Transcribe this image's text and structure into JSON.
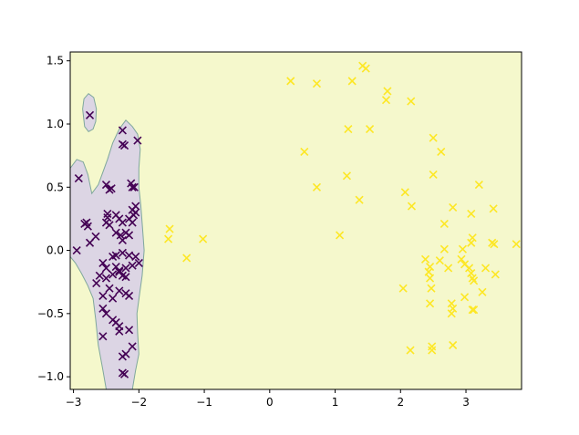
{
  "chart_data": {
    "type": "scatter",
    "title": "",
    "xlabel": "",
    "ylabel": "",
    "xlim": [
      -3.05,
      3.85
    ],
    "ylim": [
      -1.1,
      1.57
    ],
    "xticks": [
      -3,
      -2,
      -1,
      0,
      1,
      2,
      3
    ],
    "yticks": [
      -1.0,
      -0.5,
      0.0,
      0.5,
      1.0,
      1.5
    ],
    "ytick_labels": [
      "−1.0",
      "−0.5",
      "0.0",
      "0.5",
      "1.0",
      "1.5"
    ],
    "xtick_labels": [
      "−3",
      "−2",
      "−1",
      "0",
      "1",
      "2",
      "3"
    ],
    "marker": "x",
    "grid": false,
    "legend": false,
    "colors": {
      "class_0_marker": "#440154",
      "class_1_marker": "#fde725",
      "region_class_0_fill": "#dcd5e4",
      "region_class_0_edge": "#7fa79c",
      "region_class_1_fill": "#f5f8cc"
    },
    "regions": [
      {
        "label": "class 0 decision region (main)",
        "points": [
          [
            -3.05,
            0.65
          ],
          [
            -2.95,
            0.72
          ],
          [
            -2.85,
            0.7
          ],
          [
            -2.78,
            0.6
          ],
          [
            -2.72,
            0.45
          ],
          [
            -2.62,
            0.52
          ],
          [
            -2.55,
            0.62
          ],
          [
            -2.48,
            0.72
          ],
          [
            -2.4,
            0.85
          ],
          [
            -2.3,
            0.96
          ],
          [
            -2.2,
            1.03
          ],
          [
            -2.1,
            0.98
          ],
          [
            -2.02,
            0.92
          ],
          [
            -1.98,
            0.8
          ],
          [
            -2.0,
            0.65
          ],
          [
            -2.0,
            0.5
          ],
          [
            -1.97,
            0.35
          ],
          [
            -1.94,
            0.15
          ],
          [
            -1.92,
            0.0
          ],
          [
            -1.95,
            -0.2
          ],
          [
            -1.99,
            -0.35
          ],
          [
            -2.03,
            -0.5
          ],
          [
            -2.02,
            -0.65
          ],
          [
            -2.0,
            -0.82
          ],
          [
            -2.05,
            -0.95
          ],
          [
            -2.1,
            -1.1
          ],
          [
            -2.5,
            -1.1
          ],
          [
            -2.55,
            -0.95
          ],
          [
            -2.62,
            -0.75
          ],
          [
            -2.66,
            -0.55
          ],
          [
            -2.7,
            -0.38
          ],
          [
            -2.78,
            -0.28
          ],
          [
            -2.88,
            -0.18
          ],
          [
            -2.97,
            -0.1
          ],
          [
            -3.05,
            -0.05
          ]
        ]
      },
      {
        "label": "class 0 decision region (island)",
        "points": [
          [
            -2.86,
            1.12
          ],
          [
            -2.84,
            1.2
          ],
          [
            -2.77,
            1.24
          ],
          [
            -2.69,
            1.21
          ],
          [
            -2.65,
            1.12
          ],
          [
            -2.66,
            1.02
          ],
          [
            -2.7,
            0.96
          ],
          [
            -2.77,
            0.94
          ],
          [
            -2.83,
            0.98
          ]
        ]
      }
    ],
    "series": [
      {
        "class": 0,
        "points": [
          [
            -2.75,
            1.07
          ],
          [
            -2.25,
            0.95
          ],
          [
            -2.25,
            0.84
          ],
          [
            -2.22,
            0.83
          ],
          [
            -2.02,
            0.87
          ],
          [
            -2.92,
            0.57
          ],
          [
            -2.5,
            0.52
          ],
          [
            -2.45,
            0.48
          ],
          [
            -2.42,
            0.49
          ],
          [
            -2.12,
            0.53
          ],
          [
            -2.1,
            0.5
          ],
          [
            -2.07,
            0.5
          ],
          [
            -2.05,
            0.35
          ],
          [
            -2.1,
            0.32
          ],
          [
            -2.05,
            0.3
          ],
          [
            -2.08,
            0.28
          ],
          [
            -2.8,
            0.22
          ],
          [
            -2.78,
            0.19
          ],
          [
            -2.83,
            0.21
          ],
          [
            -2.48,
            0.29
          ],
          [
            -2.48,
            0.26
          ],
          [
            -2.35,
            0.28
          ],
          [
            -2.3,
            0.25
          ],
          [
            -2.25,
            0.22
          ],
          [
            -2.5,
            0.22
          ],
          [
            -2.45,
            0.2
          ],
          [
            -2.15,
            0.25
          ],
          [
            -2.1,
            0.22
          ],
          [
            -2.66,
            0.11
          ],
          [
            -2.28,
            0.12
          ],
          [
            -2.25,
            0.08
          ],
          [
            -2.15,
            0.12
          ],
          [
            -2.2,
            0.14
          ],
          [
            -2.35,
            0.14
          ],
          [
            -2.95,
            0.0
          ],
          [
            -2.75,
            0.06
          ],
          [
            -2.4,
            -0.05
          ],
          [
            -2.35,
            -0.04
          ],
          [
            -2.25,
            -0.02
          ],
          [
            -2.15,
            -0.04
          ],
          [
            -2.05,
            -0.05
          ],
          [
            -2.55,
            -0.1
          ],
          [
            -2.5,
            -0.14
          ],
          [
            -2.35,
            -0.13
          ],
          [
            -2.3,
            -0.16
          ],
          [
            -2.2,
            -0.14
          ],
          [
            -2.1,
            -0.12
          ],
          [
            -2.0,
            -0.1
          ],
          [
            -2.6,
            -0.2
          ],
          [
            -2.5,
            -0.22
          ],
          [
            -2.4,
            -0.19
          ],
          [
            -2.3,
            -0.17
          ],
          [
            -2.25,
            -0.2
          ],
          [
            -2.2,
            -0.21
          ],
          [
            -2.65,
            -0.26
          ],
          [
            -2.45,
            -0.3
          ],
          [
            -2.3,
            -0.32
          ],
          [
            -2.2,
            -0.34
          ],
          [
            -2.15,
            -0.36
          ],
          [
            -2.55,
            -0.36
          ],
          [
            -2.4,
            -0.38
          ],
          [
            -2.55,
            -0.46
          ],
          [
            -2.5,
            -0.5
          ],
          [
            -2.4,
            -0.55
          ],
          [
            -2.35,
            -0.57
          ],
          [
            -2.3,
            -0.6
          ],
          [
            -2.3,
            -0.64
          ],
          [
            -2.55,
            -0.68
          ],
          [
            -2.15,
            -0.63
          ],
          [
            -2.1,
            -0.76
          ],
          [
            -2.2,
            -0.82
          ],
          [
            -2.25,
            -0.84
          ],
          [
            -2.25,
            -0.97
          ],
          [
            -2.22,
            -0.98
          ]
        ]
      },
      {
        "class": 1,
        "points": [
          [
            1.42,
            1.46
          ],
          [
            1.47,
            1.44
          ],
          [
            0.32,
            1.34
          ],
          [
            0.72,
            1.32
          ],
          [
            1.26,
            1.34
          ],
          [
            1.8,
            1.26
          ],
          [
            1.78,
            1.19
          ],
          [
            2.16,
            1.18
          ],
          [
            1.2,
            0.96
          ],
          [
            1.53,
            0.96
          ],
          [
            2.5,
            0.89
          ],
          [
            2.62,
            0.78
          ],
          [
            0.53,
            0.78
          ],
          [
            1.18,
            0.59
          ],
          [
            2.5,
            0.6
          ],
          [
            0.72,
            0.5
          ],
          [
            3.2,
            0.52
          ],
          [
            2.07,
            0.46
          ],
          [
            1.37,
            0.4
          ],
          [
            2.17,
            0.35
          ],
          [
            2.8,
            0.34
          ],
          [
            3.42,
            0.33
          ],
          [
            3.08,
            0.29
          ],
          [
            2.67,
            0.21
          ],
          [
            -1.53,
            0.17
          ],
          [
            -1.55,
            0.09
          ],
          [
            -1.02,
            0.09
          ],
          [
            1.07,
            0.12
          ],
          [
            3.1,
            0.1
          ],
          [
            3.08,
            0.06
          ],
          [
            3.4,
            0.06
          ],
          [
            3.43,
            0.05
          ],
          [
            3.77,
            0.05
          ],
          [
            2.95,
            0.01
          ],
          [
            2.67,
            0.01
          ],
          [
            -1.27,
            -0.06
          ],
          [
            2.38,
            -0.07
          ],
          [
            2.6,
            -0.08
          ],
          [
            2.45,
            -0.13
          ],
          [
            2.43,
            -0.17
          ],
          [
            2.73,
            -0.14
          ],
          [
            2.93,
            -0.07
          ],
          [
            2.98,
            -0.11
          ],
          [
            3.05,
            -0.14
          ],
          [
            3.08,
            -0.18
          ],
          [
            3.1,
            -0.22
          ],
          [
            3.12,
            -0.24
          ],
          [
            3.3,
            -0.14
          ],
          [
            3.45,
            -0.19
          ],
          [
            2.45,
            -0.22
          ],
          [
            2.47,
            -0.3
          ],
          [
            2.04,
            -0.3
          ],
          [
            3.25,
            -0.33
          ],
          [
            2.98,
            -0.37
          ],
          [
            2.45,
            -0.42
          ],
          [
            2.78,
            -0.42
          ],
          [
            2.8,
            -0.46
          ],
          [
            2.78,
            -0.5
          ],
          [
            3.1,
            -0.47
          ],
          [
            3.12,
            -0.47
          ],
          [
            2.15,
            -0.79
          ],
          [
            2.48,
            -0.76
          ],
          [
            2.48,
            -0.79
          ],
          [
            2.8,
            -0.75
          ]
        ]
      }
    ]
  }
}
